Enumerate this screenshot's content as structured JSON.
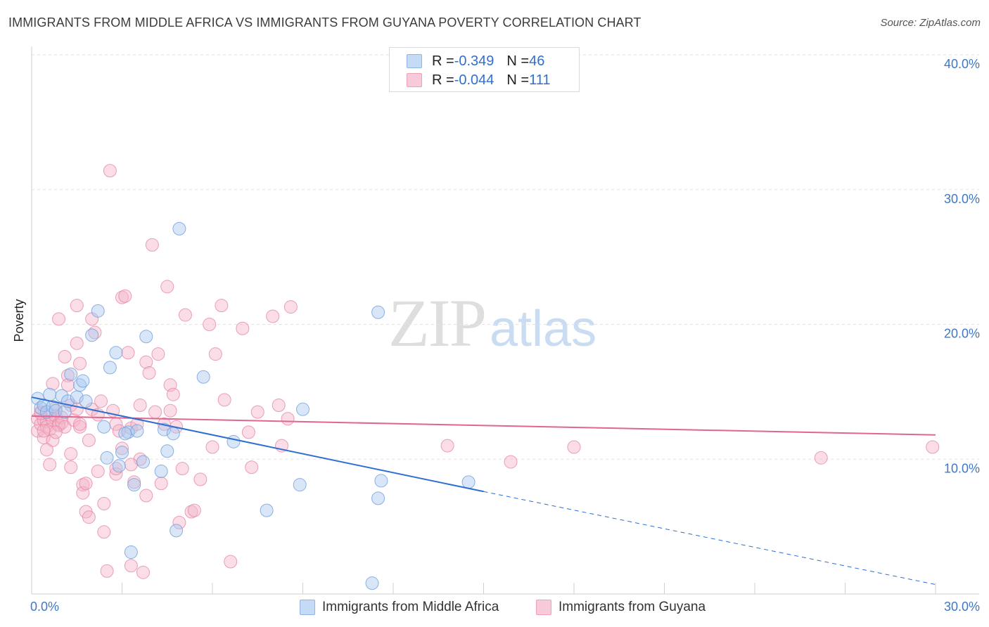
{
  "title": "IMMIGRANTS FROM MIDDLE AFRICA VS IMMIGRANTS FROM GUYANA POVERTY CORRELATION CHART",
  "source": "Source: ZipAtlas.com",
  "watermark": {
    "zip": "ZIP",
    "atlas": "atlas"
  },
  "legend": {
    "rows": [
      {
        "r_label": "R = ",
        "r_value": "-0.349",
        "n_label": "N = ",
        "n_value": "46",
        "color": "#a8c7ef"
      },
      {
        "r_label": "R = ",
        "r_value": "-0.044",
        "n_label": "N = ",
        "n_value": "111",
        "color": "#f4b3c8"
      }
    ]
  },
  "bottom_legend": {
    "series1": "Immigrants from Middle Africa",
    "series2": "Immigrants from Guyana"
  },
  "chart_data": {
    "type": "scatter",
    "ylabel": "Poverty",
    "xlim": [
      0,
      30
    ],
    "ylim": [
      0,
      40
    ],
    "y_ticks": [
      {
        "value": 10,
        "label": "10.0%"
      },
      {
        "value": 20,
        "label": "20.0%"
      },
      {
        "value": 30,
        "label": "30.0%"
      },
      {
        "value": 40,
        "label": "40.0%"
      }
    ],
    "x_ticks": [
      {
        "value": 0,
        "label": "0.0%"
      },
      {
        "value": 30,
        "label": "30.0%"
      }
    ],
    "grid": true,
    "series": [
      {
        "name": "Immigrants from Middle Africa",
        "color": "#a8c7ef",
        "stroke": "#6f9fdd",
        "trend_color": "#2f6fd0",
        "trend": {
          "x0": 0,
          "y0": 14.6,
          "x1": 15,
          "y1": 7.6,
          "dash_to_x": 30,
          "dash_to_y": 0.7
        },
        "points": [
          [
            0.2,
            14.5
          ],
          [
            0.3,
            13.8
          ],
          [
            0.4,
            14.0
          ],
          [
            0.5,
            13.5
          ],
          [
            0.6,
            14.8
          ],
          [
            0.7,
            13.9
          ],
          [
            0.8,
            13.6
          ],
          [
            1.0,
            14.7
          ],
          [
            1.1,
            13.5
          ],
          [
            1.2,
            14.3
          ],
          [
            1.3,
            16.3
          ],
          [
            1.5,
            14.6
          ],
          [
            1.6,
            15.5
          ],
          [
            1.7,
            15.8
          ],
          [
            1.8,
            14.3
          ],
          [
            2.0,
            19.2
          ],
          [
            2.2,
            21.0
          ],
          [
            2.4,
            12.4
          ],
          [
            2.5,
            10.1
          ],
          [
            2.6,
            16.8
          ],
          [
            2.8,
            17.9
          ],
          [
            2.9,
            9.5
          ],
          [
            3.0,
            10.5
          ],
          [
            3.2,
            12.0
          ],
          [
            3.3,
            3.1
          ],
          [
            3.4,
            8.1
          ],
          [
            3.5,
            12.1
          ],
          [
            3.7,
            9.8
          ],
          [
            3.8,
            19.1
          ],
          [
            4.3,
            9.1
          ],
          [
            4.4,
            12.2
          ],
          [
            4.5,
            10.6
          ],
          [
            4.7,
            11.9
          ],
          [
            4.8,
            4.7
          ],
          [
            4.9,
            27.1
          ],
          [
            5.7,
            16.1
          ],
          [
            6.7,
            11.3
          ],
          [
            7.8,
            6.2
          ],
          [
            8.9,
            8.1
          ],
          [
            9.0,
            13.7
          ],
          [
            11.5,
            20.9
          ],
          [
            11.6,
            8.4
          ],
          [
            11.5,
            7.1
          ],
          [
            11.3,
            0.8
          ],
          [
            14.5,
            8.3
          ],
          [
            3.1,
            11.9
          ]
        ]
      },
      {
        "name": "Immigrants from Guyana",
        "color": "#f4b3c8",
        "stroke": "#e58aa8",
        "trend_color": "#e0668f",
        "trend": {
          "x0": 0,
          "y0": 13.2,
          "x1": 30,
          "y1": 11.8
        },
        "points": [
          [
            0.2,
            13.0
          ],
          [
            0.2,
            12.1
          ],
          [
            0.3,
            12.6
          ],
          [
            0.3,
            13.5
          ],
          [
            0.4,
            12.9
          ],
          [
            0.4,
            11.6
          ],
          [
            0.5,
            12.8
          ],
          [
            0.5,
            12.4
          ],
          [
            0.6,
            13.3
          ],
          [
            0.6,
            12.2
          ],
          [
            0.7,
            12.9
          ],
          [
            0.7,
            11.4
          ],
          [
            0.8,
            13.8
          ],
          [
            0.8,
            13.2
          ],
          [
            0.9,
            12.6
          ],
          [
            0.9,
            12.5
          ],
          [
            1.0,
            13.1
          ],
          [
            1.0,
            12.7
          ],
          [
            1.1,
            12.4
          ],
          [
            1.2,
            16.2
          ],
          [
            1.2,
            15.5
          ],
          [
            1.3,
            14.0
          ],
          [
            1.3,
            9.4
          ],
          [
            1.4,
            12.9
          ],
          [
            1.5,
            18.6
          ],
          [
            1.5,
            13.7
          ],
          [
            1.6,
            12.4
          ],
          [
            1.6,
            17.1
          ],
          [
            1.7,
            8.1
          ],
          [
            1.7,
            7.5
          ],
          [
            1.8,
            6.1
          ],
          [
            1.9,
            11.4
          ],
          [
            1.9,
            5.7
          ],
          [
            2.0,
            20.4
          ],
          [
            2.0,
            13.7
          ],
          [
            2.1,
            19.4
          ],
          [
            2.2,
            9.1
          ],
          [
            2.3,
            14.3
          ],
          [
            2.4,
            6.7
          ],
          [
            2.4,
            4.6
          ],
          [
            2.5,
            1.7
          ],
          [
            2.6,
            31.4
          ],
          [
            2.7,
            13.6
          ],
          [
            2.8,
            12.6
          ],
          [
            2.8,
            8.9
          ],
          [
            2.9,
            12.1
          ],
          [
            3.0,
            22.0
          ],
          [
            3.0,
            10.8
          ],
          [
            3.1,
            22.1
          ],
          [
            3.2,
            17.9
          ],
          [
            3.3,
            12.3
          ],
          [
            3.3,
            2.1
          ],
          [
            3.4,
            8.3
          ],
          [
            3.5,
            12.6
          ],
          [
            3.6,
            10.0
          ],
          [
            3.7,
            1.6
          ],
          [
            3.8,
            17.2
          ],
          [
            3.8,
            7.3
          ],
          [
            3.9,
            16.4
          ],
          [
            4.0,
            25.9
          ],
          [
            4.1,
            13.5
          ],
          [
            4.2,
            17.8
          ],
          [
            4.3,
            8.2
          ],
          [
            4.4,
            12.6
          ],
          [
            4.5,
            22.8
          ],
          [
            4.6,
            15.5
          ],
          [
            4.7,
            14.8
          ],
          [
            4.8,
            12.4
          ],
          [
            4.9,
            5.3
          ],
          [
            5.0,
            9.3
          ],
          [
            5.1,
            20.7
          ],
          [
            5.3,
            6.1
          ],
          [
            5.4,
            6.2
          ],
          [
            5.6,
            8.5
          ],
          [
            5.9,
            20.0
          ],
          [
            6.0,
            10.9
          ],
          [
            6.1,
            17.8
          ],
          [
            6.3,
            21.4
          ],
          [
            6.4,
            14.4
          ],
          [
            6.6,
            2.4
          ],
          [
            7.0,
            19.7
          ],
          [
            7.2,
            12.0
          ],
          [
            7.3,
            9.4
          ],
          [
            7.5,
            13.5
          ],
          [
            8.0,
            20.6
          ],
          [
            8.2,
            14.0
          ],
          [
            8.3,
            11.0
          ],
          [
            8.5,
            13.0
          ],
          [
            8.6,
            21.3
          ],
          [
            0.9,
            20.4
          ],
          [
            1.1,
            17.6
          ],
          [
            1.3,
            10.4
          ],
          [
            1.5,
            21.4
          ],
          [
            1.6,
            12.6
          ],
          [
            0.5,
            10.7
          ],
          [
            0.6,
            9.6
          ],
          [
            2.2,
            13.3
          ],
          [
            3.6,
            14.0
          ],
          [
            0.3,
            13.4
          ],
          [
            0.8,
            12.0
          ],
          [
            2.8,
            9.3
          ],
          [
            1.8,
            8.2
          ],
          [
            4.6,
            13.6
          ],
          [
            13.8,
            11.0
          ],
          [
            15.9,
            9.8
          ],
          [
            18.0,
            10.9
          ],
          [
            26.2,
            10.1
          ],
          [
            29.9,
            10.9
          ],
          [
            3.3,
            9.6
          ],
          [
            0.7,
            15.6
          ],
          [
            0.4,
            12.1
          ]
        ]
      }
    ]
  }
}
